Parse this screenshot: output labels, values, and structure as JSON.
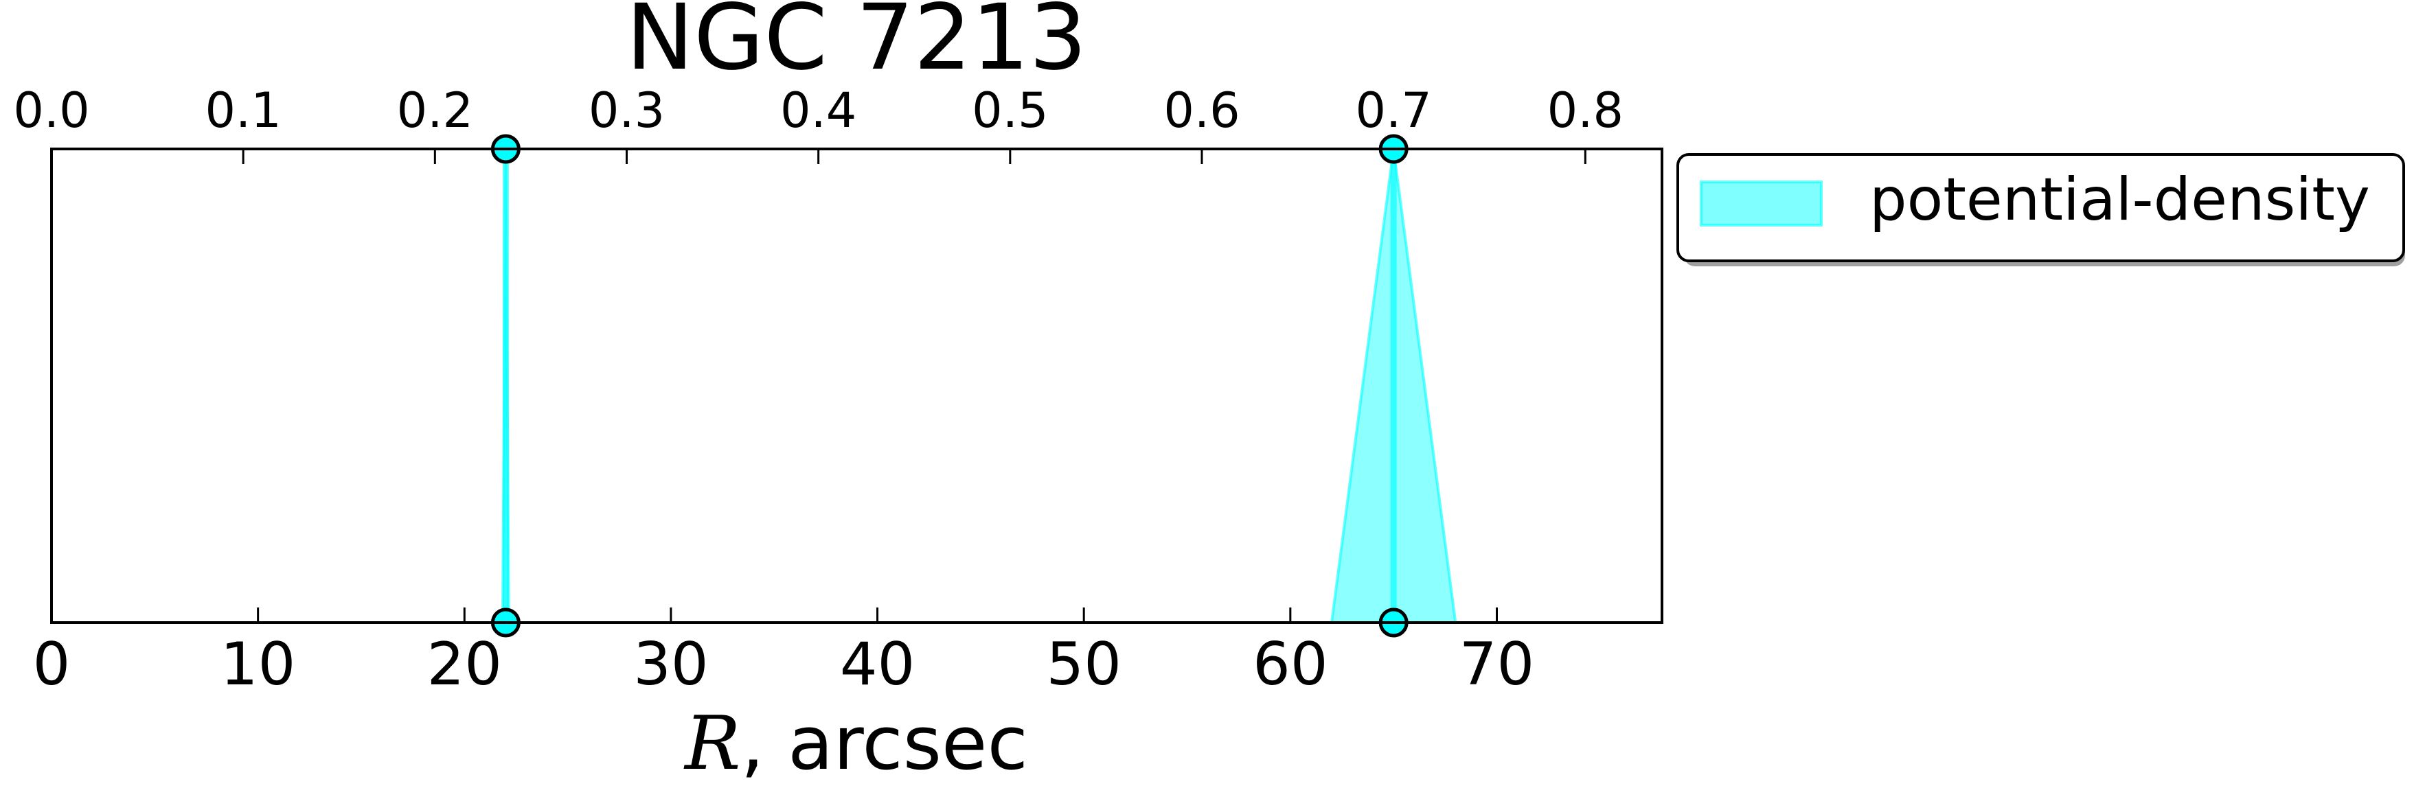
{
  "chart_data": {
    "type": "area",
    "title": "NGC 7213",
    "xlabel_italic": "R",
    "xlabel_rest": ", arcsec",
    "ylabel": "",
    "xlim": [
      0,
      78
    ],
    "x_ticks": [
      0,
      10,
      20,
      30,
      40,
      50,
      60,
      70
    ],
    "top_xlim": [
      0,
      0.84
    ],
    "top_ticks": [
      "0.0",
      "0.1",
      "0.2",
      "0.3",
      "0.4",
      "0.5",
      "0.6",
      "0.7",
      "0.8"
    ],
    "y_ticks": [],
    "grid": false,
    "legend": {
      "placement": "outside-top-right",
      "entries": [
        "potential-density"
      ]
    },
    "series": [
      {
        "name": "potential-density",
        "color": "#00ffff",
        "edge_color": "#000000",
        "measurements": [
          {
            "r": 22.0,
            "r_low": 21.85,
            "r_high": 22.15
          },
          {
            "r": 65.0,
            "r_low": 62.0,
            "r_high": 68.0
          }
        ]
      }
    ]
  }
}
